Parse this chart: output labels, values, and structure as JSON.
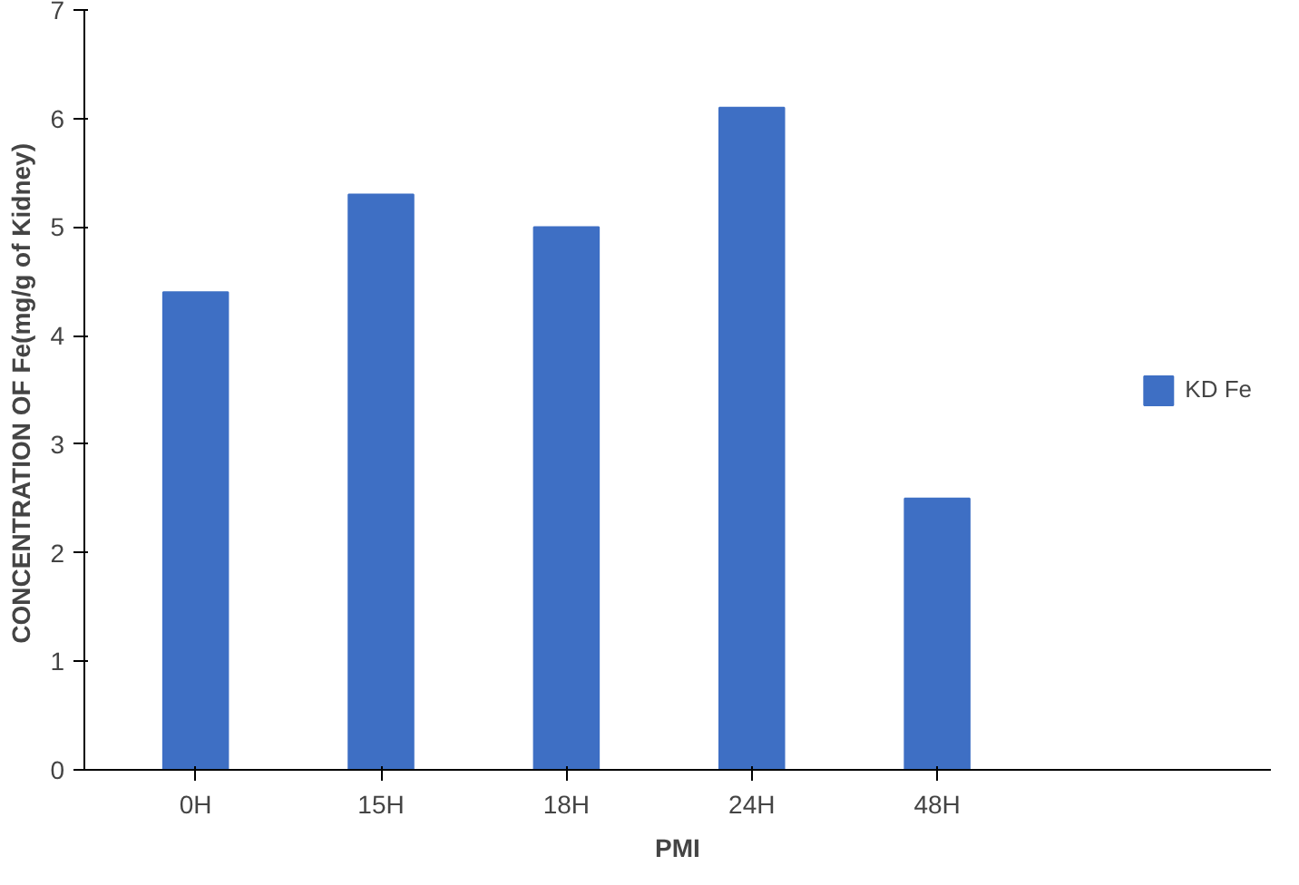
{
  "chart_data": {
    "type": "bar",
    "xlabel": "PMI",
    "ylabel": "CONCENTRATION  OF Fe(mg/g of Kidney)",
    "categories": [
      "0H",
      "15H",
      "18H",
      "24H",
      "48H"
    ],
    "series": [
      {
        "name": "KD Fe",
        "color": "#3e6fc4",
        "values": [
          4.4,
          5.3,
          5.0,
          6.1,
          2.5
        ]
      }
    ],
    "ylim": [
      0,
      7
    ],
    "yticks": [
      0,
      1,
      2,
      3,
      4,
      5,
      6,
      7
    ],
    "grid": false,
    "legend": "right"
  }
}
